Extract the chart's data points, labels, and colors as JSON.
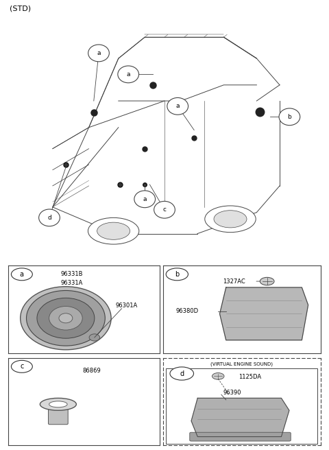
{
  "title_std": "(STD)",
  "bg_color": "#ffffff",
  "line_color": "#444444",
  "text_color": "#000000",
  "box_a_parts": [
    "96331B",
    "96331A",
    "96301A"
  ],
  "box_b_parts": [
    "1327AC",
    "96380D"
  ],
  "box_c_parts": [
    "86869"
  ],
  "box_d_parts": [
    "1125DA",
    "96390"
  ],
  "virtual_engine_label": "(VIRTUAL ENGINE SOUND)"
}
